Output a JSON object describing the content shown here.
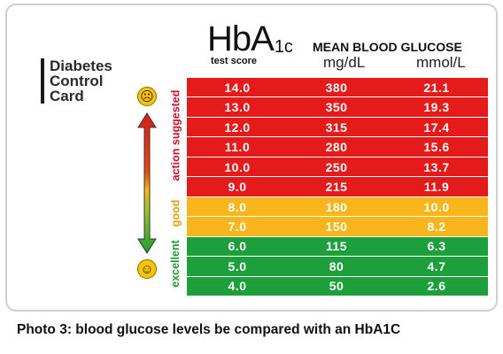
{
  "card": {
    "side_title_lines": [
      "Diabetes",
      "Control",
      "Card"
    ],
    "hba_main": "HbA",
    "hba_sub": "1c",
    "hba_test": "test score",
    "mean_title": "MEAN BLOOD GLUCOSE",
    "unit_mg": "mg/dL",
    "unit_mmol": "mmol/L",
    "zones": {
      "action": "action suggested",
      "good": "good",
      "excellent": "excellent"
    },
    "rows": [
      {
        "hba1c": "14.0",
        "mg": "380",
        "mmol": "21.1",
        "zone": "red"
      },
      {
        "hba1c": "13.0",
        "mg": "350",
        "mmol": "19.3",
        "zone": "red"
      },
      {
        "hba1c": "12.0",
        "mg": "315",
        "mmol": "17.4",
        "zone": "red"
      },
      {
        "hba1c": "11.0",
        "mg": "280",
        "mmol": "15.6",
        "zone": "red"
      },
      {
        "hba1c": "10.0",
        "mg": "250",
        "mmol": "13.7",
        "zone": "red"
      },
      {
        "hba1c": "9.0",
        "mg": "215",
        "mmol": "11.9",
        "zone": "red"
      },
      {
        "hba1c": "8.0",
        "mg": "180",
        "mmol": "10.0",
        "zone": "orange"
      },
      {
        "hba1c": "7.0",
        "mg": "150",
        "mmol": "8.2",
        "zone": "orange"
      },
      {
        "hba1c": "6.0",
        "mg": "115",
        "mmol": "6.3",
        "zone": "green"
      },
      {
        "hba1c": "5.0",
        "mg": "80",
        "mmol": "4.7",
        "zone": "green"
      },
      {
        "hba1c": "4.0",
        "mg": "50",
        "mmol": "2.6",
        "zone": "green"
      }
    ],
    "icons": {
      "top": "sad-face-icon",
      "bottom": "happy-face-icon",
      "middle": "double-arrow-icon"
    },
    "colors": {
      "red": "#e51a1a",
      "orange": "#f8b61c",
      "green": "#1da03b"
    }
  },
  "caption": "Photo 3: blood glucose levels be compared with an HbA1C"
}
